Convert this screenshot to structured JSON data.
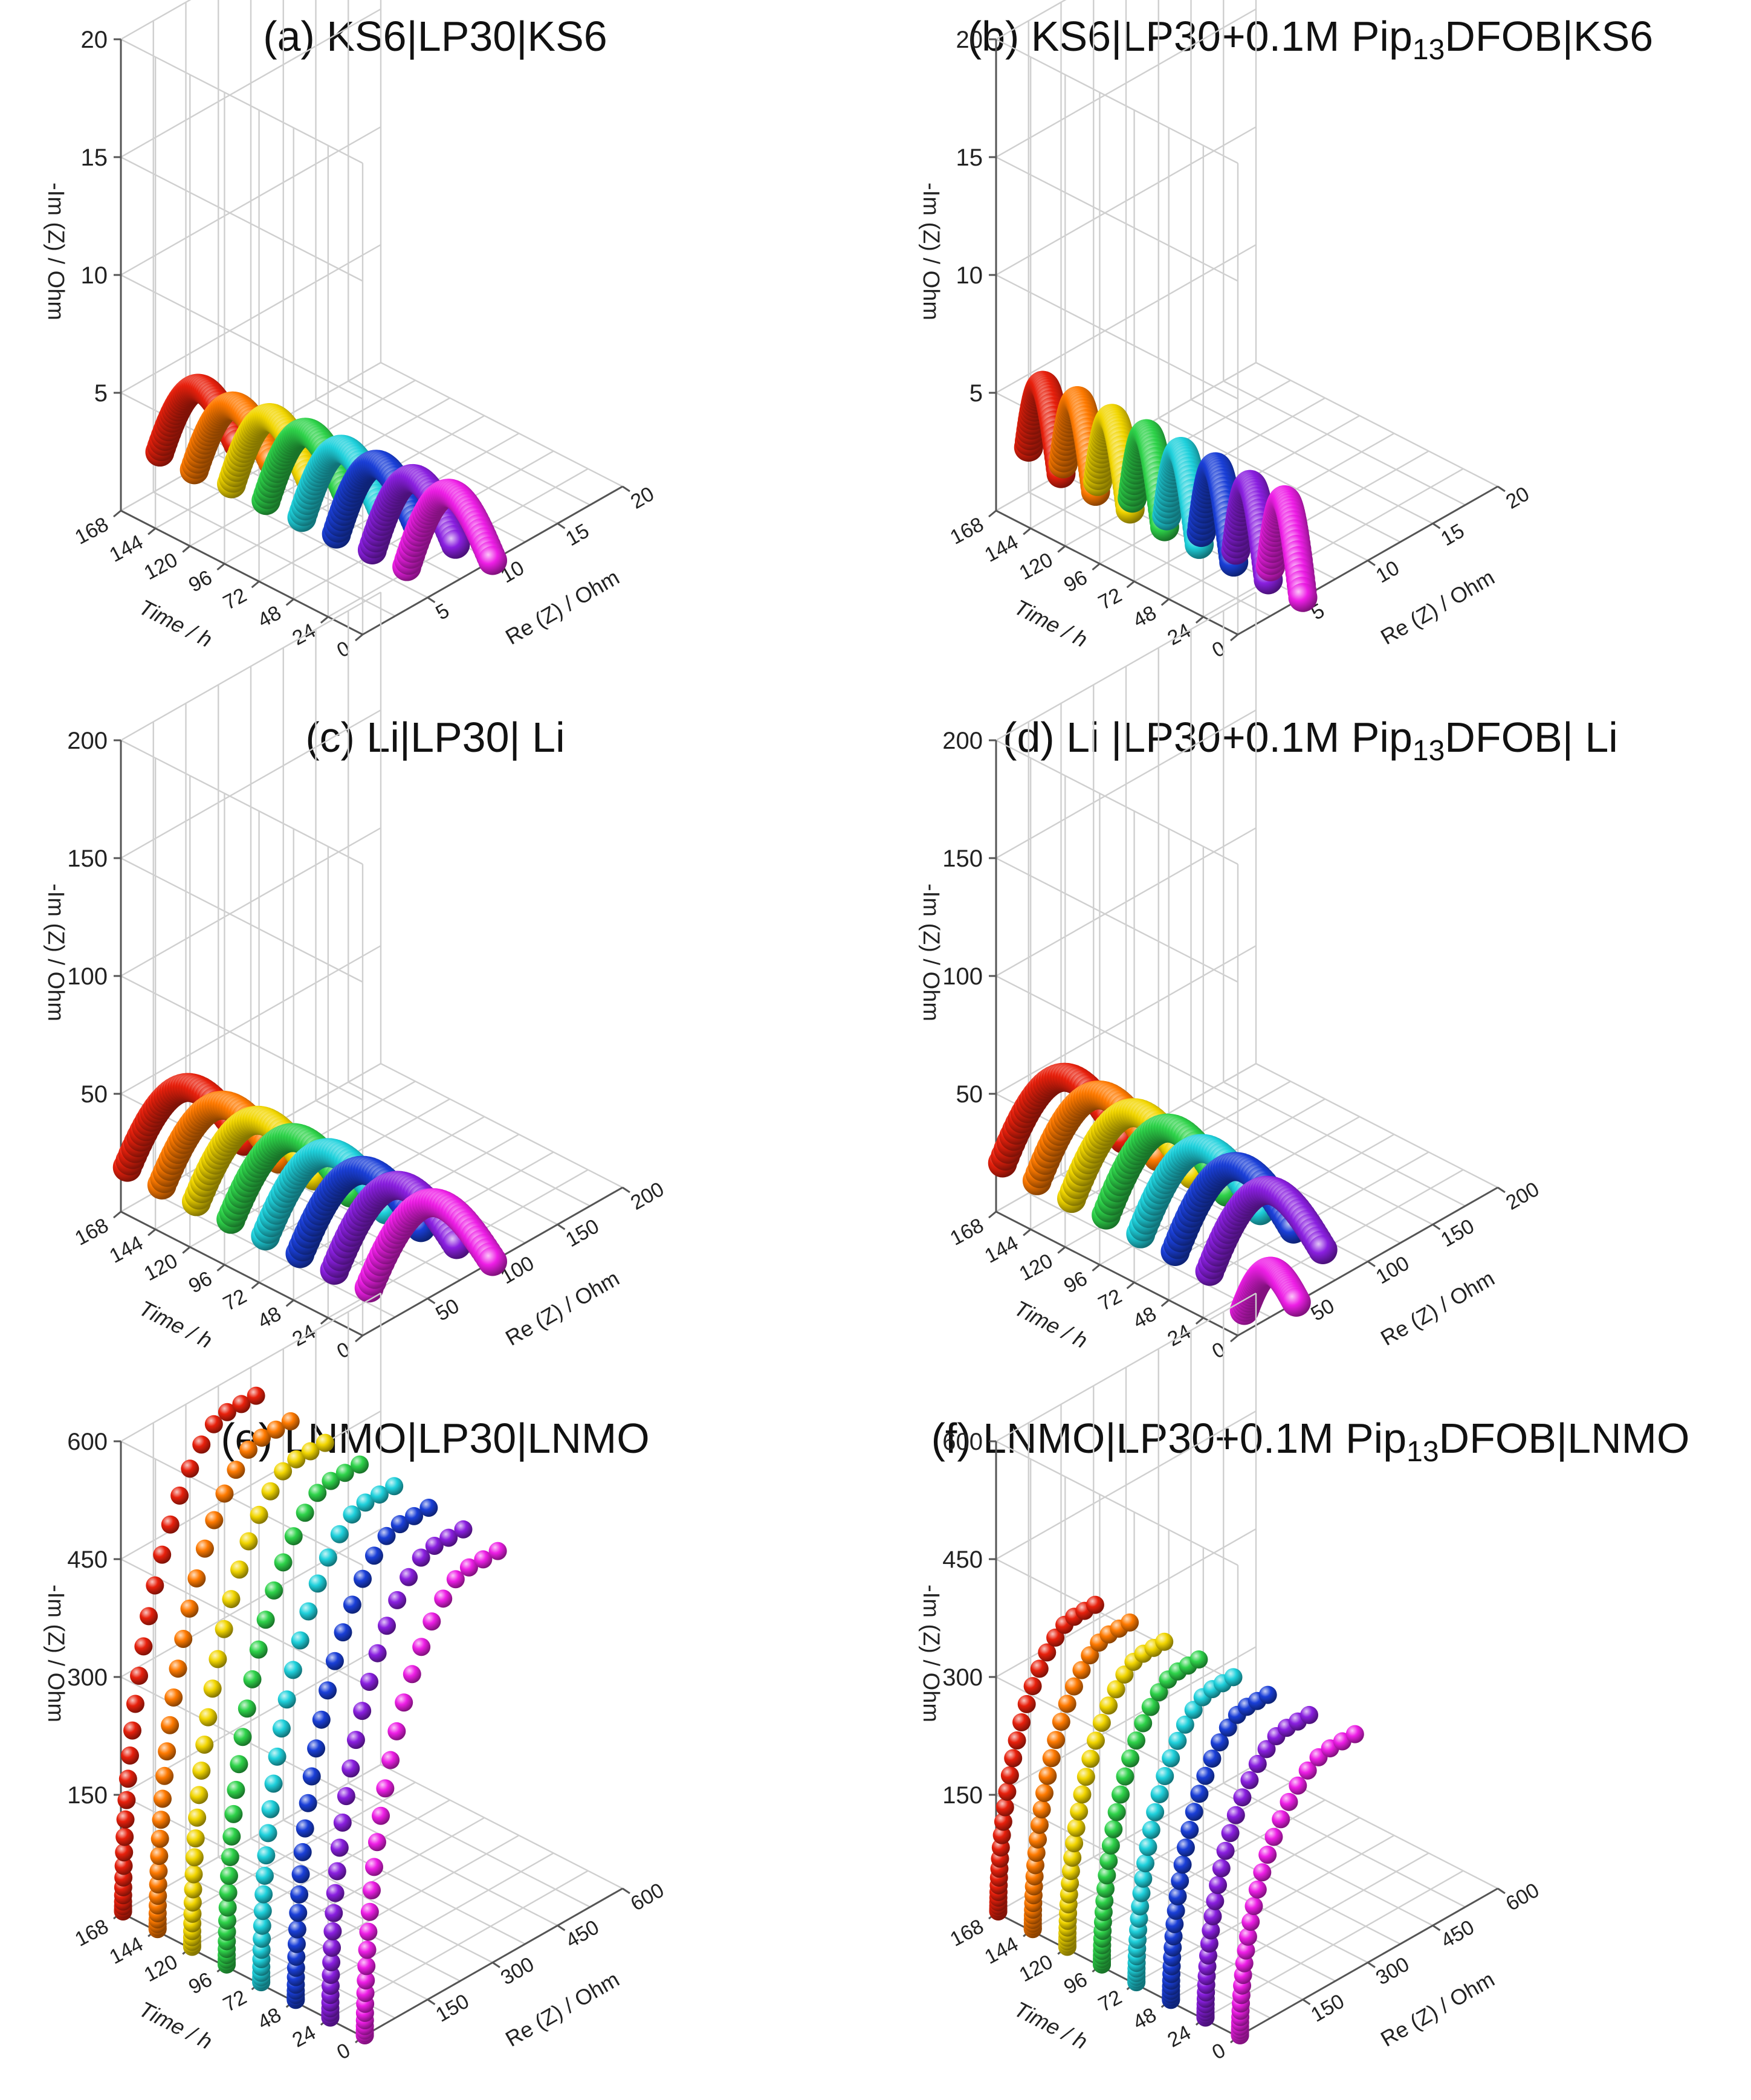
{
  "colors": [
    "#e8200c",
    "#ff7a00",
    "#f2d600",
    "#2ed34a",
    "#1fd1dc",
    "#1a3fd8",
    "#8a1fe0",
    "#ee1ee6"
  ],
  "time_series": [
    "168 h",
    "144 h",
    "120 h",
    "96 h",
    "72 h",
    "48 h",
    "24 h",
    "0 h"
  ],
  "chart_data": [
    {
      "id": "a",
      "type": "scatter3d",
      "title": {
        "label": "(a) KS6|LP30|KS6",
        "main": "(a) KS6|LP30|KS6 ",
        "sub": "",
        "rest": ""
      },
      "ylabel": "-Im (Z) / Ohm",
      "xlabel": "Re (Z) / Ohm",
      "zlabel": "Time / h",
      "yticks": [
        "5",
        "10",
        "15",
        "20"
      ],
      "xticks": [
        "5",
        "10",
        "15",
        "20"
      ],
      "zticks": [
        "0",
        "24",
        "48",
        "72",
        "96",
        "120",
        "144",
        "168"
      ],
      "ymax": 20,
      "xmax": 20,
      "style": "tube",
      "series": [
        {
          "time": 168,
          "re_start": 3.0,
          "re_end": 9.0,
          "im_max": 3.4
        },
        {
          "time": 144,
          "re_start": 3.0,
          "re_end": 9.0,
          "im_max": 3.4
        },
        {
          "time": 120,
          "re_start": 3.2,
          "re_end": 9.2,
          "im_max": 3.6
        },
        {
          "time": 96,
          "re_start": 3.2,
          "re_end": 9.4,
          "im_max": 3.7
        },
        {
          "time": 72,
          "re_start": 3.3,
          "re_end": 9.5,
          "im_max": 3.7
        },
        {
          "time": 48,
          "re_start": 3.3,
          "re_end": 9.6,
          "im_max": 3.8
        },
        {
          "time": 24,
          "re_start": 3.4,
          "re_end": 9.8,
          "im_max": 3.9
        },
        {
          "time": 0,
          "re_start": 3.4,
          "re_end": 10.0,
          "im_max": 4.0
        }
      ]
    },
    {
      "id": "b",
      "type": "scatter3d",
      "title": {
        "label": "(b) KS6|LP30+0.1M Pip13DFOB|KS6",
        "main": "(b) KS6|LP30+0.1M Pip",
        "sub": "13",
        "rest": "DFOB|KS6"
      },
      "ylabel": "-Im (Z) / Ohm",
      "xlabel": "Re (Z) / Ohm",
      "zlabel": "Time / h",
      "yticks": [
        "5",
        "10",
        "15",
        "20"
      ],
      "xticks": [
        "5",
        "10",
        "15",
        "20"
      ],
      "zticks": [
        "0",
        "24",
        "48",
        "72",
        "96",
        "120",
        "144",
        "168"
      ],
      "ymax": 20,
      "xmax": 20,
      "style": "tube",
      "series": [
        {
          "time": 168,
          "re_start": 2.5,
          "re_end": 5.0,
          "im_max": 4.2
        },
        {
          "time": 144,
          "re_start": 2.5,
          "re_end": 5.0,
          "im_max": 4.3
        },
        {
          "time": 120,
          "re_start": 2.5,
          "re_end": 5.0,
          "im_max": 4.3
        },
        {
          "time": 96,
          "re_start": 2.5,
          "re_end": 5.0,
          "im_max": 4.4
        },
        {
          "time": 72,
          "re_start": 2.5,
          "re_end": 5.0,
          "im_max": 4.4
        },
        {
          "time": 48,
          "re_start": 2.5,
          "re_end": 5.0,
          "im_max": 4.5
        },
        {
          "time": 24,
          "re_start": 2.5,
          "re_end": 5.0,
          "im_max": 4.5
        },
        {
          "time": 0,
          "re_start": 2.5,
          "re_end": 5.0,
          "im_max": 4.6
        }
      ]
    },
    {
      "id": "c",
      "type": "scatter3d",
      "title": {
        "label": "(c) Li|LP30| Li",
        "main": "(c) Li|LP30| Li",
        "sub": "",
        "rest": ""
      },
      "ylabel": "-Im (Z) / Ohm",
      "xlabel": "Re (Z) / Ohm",
      "zlabel": "Time / h",
      "yticks": [
        "50",
        "100",
        "150",
        "200"
      ],
      "xticks": [
        "50",
        "100",
        "150",
        "200"
      ],
      "zticks": [
        "0",
        "24",
        "48",
        "72",
        "96",
        "120",
        "144",
        "168"
      ],
      "ymax": 200,
      "xmax": 200,
      "style": "tube",
      "series": [
        {
          "time": 168,
          "re_start": 5,
          "re_end": 95,
          "im_max": 38
        },
        {
          "time": 144,
          "re_start": 5,
          "re_end": 95,
          "im_max": 38
        },
        {
          "time": 120,
          "re_start": 5,
          "re_end": 96,
          "im_max": 39
        },
        {
          "time": 96,
          "re_start": 5,
          "re_end": 97,
          "im_max": 39
        },
        {
          "time": 72,
          "re_start": 5,
          "re_end": 98,
          "im_max": 40
        },
        {
          "time": 48,
          "re_start": 5,
          "re_end": 98,
          "im_max": 40
        },
        {
          "time": 24,
          "re_start": 5,
          "re_end": 99,
          "im_max": 41
        },
        {
          "time": 0,
          "re_start": 5,
          "re_end": 100,
          "im_max": 41
        }
      ]
    },
    {
      "id": "d",
      "type": "scatter3d",
      "title": {
        "label": "(d) Li |LP30+0.1M Pip13DFOB| Li",
        "main": "(d) Li |LP30+0.1M Pip",
        "sub": "13",
        "rest": "DFOB| Li"
      },
      "ylabel": "-Im (Z) / Ohm",
      "xlabel": "Re (Z) / Ohm",
      "zlabel": "Time / h",
      "yticks": [
        "50",
        "100",
        "150",
        "200"
      ],
      "xticks": [
        "50",
        "100",
        "150",
        "200"
      ],
      "zticks": [
        "0",
        "24",
        "48",
        "72",
        "96",
        "120",
        "144",
        "168"
      ],
      "ymax": 200,
      "xmax": 200,
      "style": "tube",
      "series": [
        {
          "time": 168,
          "re_start": 5,
          "re_end": 98,
          "im_max": 42
        },
        {
          "time": 144,
          "re_start": 5,
          "re_end": 98,
          "im_max": 42
        },
        {
          "time": 120,
          "re_start": 5,
          "re_end": 98,
          "im_max": 42
        },
        {
          "time": 96,
          "re_start": 5,
          "re_end": 98,
          "im_max": 43
        },
        {
          "time": 72,
          "re_start": 5,
          "re_end": 97,
          "im_max": 42
        },
        {
          "time": 48,
          "re_start": 5,
          "re_end": 96,
          "im_max": 42
        },
        {
          "time": 24,
          "re_start": 5,
          "re_end": 92,
          "im_max": 40
        },
        {
          "time": 0,
          "re_start": 5,
          "re_end": 45,
          "im_max": 20
        }
      ]
    },
    {
      "id": "e",
      "type": "scatter3d",
      "title": {
        "label": "(e) LNMO|LP30|LNMO",
        "main": "(e) LNMO|LP30|LNMO",
        "sub": "",
        "rest": ""
      },
      "ylabel": "-Im (Z) / Ohm",
      "xlabel": "Re (Z) / Ohm",
      "zlabel": "Time / h",
      "yticks": [
        "150",
        "300",
        "450",
        "600"
      ],
      "xticks": [
        "150",
        "300",
        "450",
        "600"
      ],
      "zticks": [
        "0",
        "24",
        "48",
        "72",
        "96",
        "120",
        "144",
        "168"
      ],
      "ymax": 600,
      "xmax": 600,
      "style": "sphere",
      "series": [
        {
          "time": 168,
          "re_start": 5,
          "re_end": 300,
          "im_max": 560
        },
        {
          "time": 144,
          "re_start": 5,
          "re_end": 300,
          "im_max": 550
        },
        {
          "time": 120,
          "re_start": 5,
          "re_end": 300,
          "im_max": 545
        },
        {
          "time": 96,
          "re_start": 5,
          "re_end": 300,
          "im_max": 540
        },
        {
          "time": 72,
          "re_start": 5,
          "re_end": 300,
          "im_max": 535
        },
        {
          "time": 48,
          "re_start": 5,
          "re_end": 300,
          "im_max": 530
        },
        {
          "time": 24,
          "re_start": 5,
          "re_end": 300,
          "im_max": 525
        },
        {
          "time": 0,
          "re_start": 5,
          "re_end": 300,
          "im_max": 520
        }
      ]
    },
    {
      "id": "f",
      "type": "scatter3d",
      "title": {
        "label": "(f) LNMO|LP30+0.1M Pip13DFOB|LNMO",
        "main": "(f) LNMO|LP30+0.1M Pip",
        "sub": "13",
        "rest": "DFOB|LNMO"
      },
      "ylabel": "-Im (Z) / Ohm",
      "xlabel": "Re (Z) / Ohm",
      "zlabel": "Time / h",
      "yticks": [
        "150",
        "300",
        "450",
        "600"
      ],
      "xticks": [
        "150",
        "300",
        "450",
        "600"
      ],
      "zticks": [
        "0",
        "24",
        "48",
        "72",
        "96",
        "120",
        "144",
        "168"
      ],
      "ymax": 600,
      "xmax": 600,
      "style": "sphere",
      "series": [
        {
          "time": 168,
          "re_start": 5,
          "re_end": 220,
          "im_max": 320
        },
        {
          "time": 144,
          "re_start": 5,
          "re_end": 220,
          "im_max": 320
        },
        {
          "time": 120,
          "re_start": 5,
          "re_end": 220,
          "im_max": 318
        },
        {
          "time": 96,
          "re_start": 5,
          "re_end": 220,
          "im_max": 318
        },
        {
          "time": 72,
          "re_start": 5,
          "re_end": 220,
          "im_max": 318
        },
        {
          "time": 48,
          "re_start": 5,
          "re_end": 220,
          "im_max": 318
        },
        {
          "time": 24,
          "re_start": 5,
          "re_end": 235,
          "im_max": 310
        },
        {
          "time": 0,
          "re_start": 5,
          "re_end": 260,
          "im_max": 300
        }
      ]
    }
  ]
}
